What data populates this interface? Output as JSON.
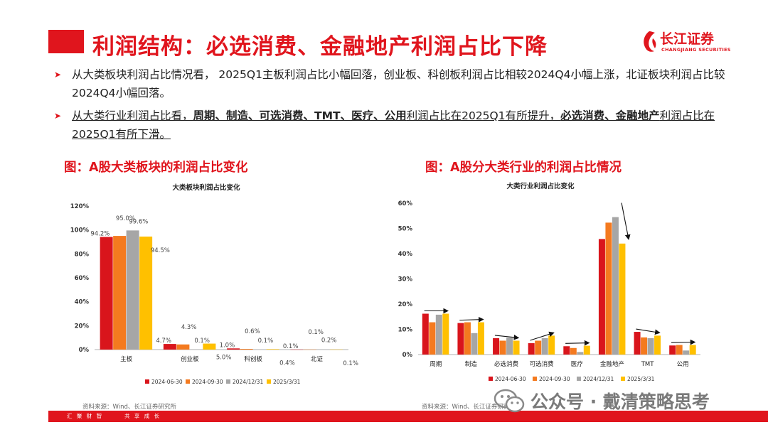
{
  "header": {
    "title": "利润结构：必选消费、金融地产利润占比下降",
    "logo_cn": "长江证券",
    "logo_en": "CHANGJIANG SECURITIES"
  },
  "bullets": {
    "b1": "从大类板块利润占比情况看， 2025Q1主板利润占比小幅回落，创业板、科创板利润占比相较2024Q4小幅上涨，北证板块利润占比较2024Q4小幅回落。",
    "b2_pre": "从大类行业利润占比看，",
    "b2_hl1": "周期、制造、可选消费、TMT、医疗、公用",
    "b2_mid": "利润占比在2025Q1有所提升，",
    "b2_hl2": "必选消费、金融地产",
    "b2_post": "利润占比在",
    "b2_tail": "2025Q1有所下滑。"
  },
  "figures": {
    "left_title": "图：A股大类板块的利润占比变化",
    "right_title": "图：A股分大类行业的利润占比情况",
    "left_source": "资料来源：Wind、长江证券研究所",
    "right_source": "资料来源：Wind、长江证券研究所"
  },
  "footer": {
    "left": "汇 聚 财 智",
    "right": "共 享 成 长"
  },
  "watermark": "公众号 · 戴清策略思考",
  "colors": {
    "brand_red": "#e0151d",
    "series": [
      "#d9151c",
      "#f47a1f",
      "#a6a6a6",
      "#ffc000"
    ]
  },
  "chart_data": [
    {
      "type": "bar",
      "title": "大类板块利润占比变化",
      "categories": [
        "主板",
        "创业板",
        "科创板",
        "北证"
      ],
      "series": [
        {
          "name": "2024-06-30",
          "values": [
            94.2,
            4.7,
            1.0,
            0.1
          ],
          "labels": [
            "94.2%",
            "4.7%",
            "1.0%",
            "0.1%"
          ]
        },
        {
          "name": "2024-09-30",
          "values": [
            95.0,
            4.3,
            0.6,
            0.1
          ],
          "labels": [
            "95.0%",
            "4.3%",
            "0.6%",
            "0.1%"
          ]
        },
        {
          "name": "2024/12/31",
          "values": [
            99.6,
            0.1,
            0.1,
            0.2
          ],
          "labels": [
            "99.6%",
            "0.1%",
            "0.1%",
            "0.2%"
          ]
        },
        {
          "name": "2025/3/31",
          "values": [
            94.5,
            5.0,
            0.4,
            0.1
          ],
          "labels": [
            "94.5%",
            "5.0%",
            "0.4%",
            "0.1%"
          ]
        }
      ],
      "yticks": [
        "0%",
        "20%",
        "40%",
        "60%",
        "80%",
        "100%",
        "120%"
      ],
      "ylim": [
        0,
        120
      ],
      "legend": "bottom"
    },
    {
      "type": "bar",
      "title": "大类行业利润占比变化",
      "categories": [
        "周期",
        "制造",
        "必选消费",
        "可选消费",
        "医疗",
        "金融地产",
        "TMT",
        "公用"
      ],
      "series": [
        {
          "name": "2024-06-30",
          "values": [
            16.2,
            12.5,
            6.5,
            4.5,
            3.3,
            45.8,
            9.0,
            3.6
          ]
        },
        {
          "name": "2024-09-30",
          "values": [
            12.8,
            12.8,
            5.5,
            5.5,
            2.6,
            52.3,
            6.8,
            3.8
          ]
        },
        {
          "name": "2024/12/31",
          "values": [
            15.8,
            8.5,
            6.7,
            6.5,
            1.0,
            54.5,
            6.5,
            1.6
          ]
        },
        {
          "name": "2025/3/31",
          "values": [
            16.2,
            12.8,
            5.5,
            7.5,
            3.5,
            44.0,
            7.5,
            3.8
          ]
        }
      ],
      "yticks": [
        "0%",
        "10%",
        "20%",
        "30%",
        "40%",
        "50%",
        "60%"
      ],
      "ylim": [
        0,
        60
      ],
      "legend": "bottom"
    }
  ]
}
